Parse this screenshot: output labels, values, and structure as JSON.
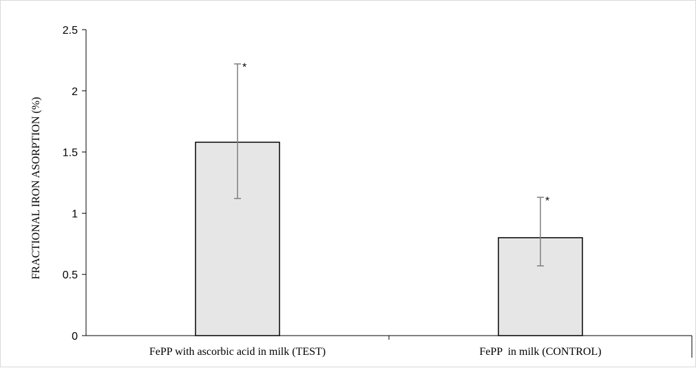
{
  "chart_data": {
    "type": "bar",
    "title": "",
    "xlabel": "",
    "ylabel": "FRACTIONAL IRON ASORPTION (%)",
    "ylim": [
      0,
      2.5
    ],
    "yticks": [
      "0",
      "0.5",
      "1",
      "1.5",
      "2",
      "2.5"
    ],
    "ytick_values": [
      0,
      0.5,
      1,
      1.5,
      2,
      2.5
    ],
    "grid": false,
    "categories": [
      "FePP with ascorbic acid in milk (TEST)",
      "FePP  in milk (CONTROL)"
    ],
    "values": [
      1.58,
      0.8
    ],
    "error_low": [
      1.12,
      0.57
    ],
    "error_high": [
      2.22,
      1.13
    ],
    "annotations": [
      "*",
      "*"
    ],
    "bar_color": "#e6e6e6",
    "bar_edge_color": "#000000",
    "error_color": "#7f7f7f"
  }
}
